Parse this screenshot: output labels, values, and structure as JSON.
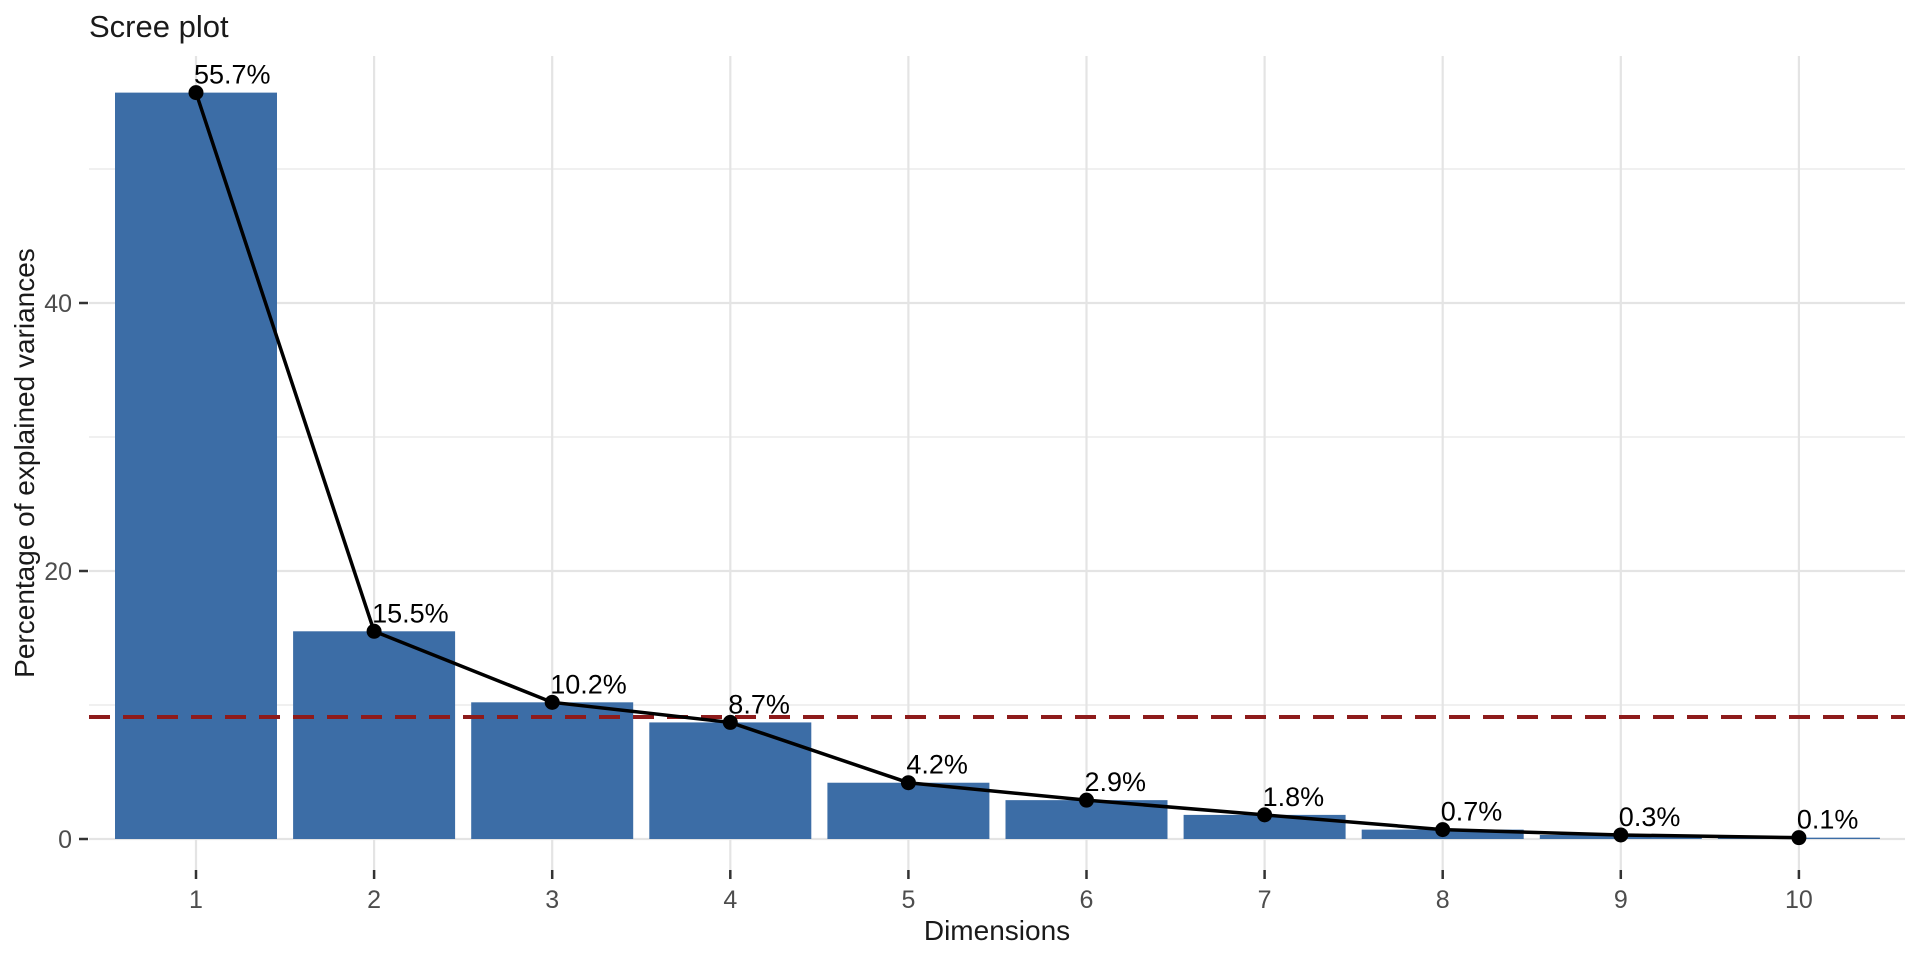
{
  "title": "Scree plot",
  "chart_data": {
    "type": "bar",
    "overlay": "line+points",
    "title": "Scree plot",
    "xlabel": "Dimensions",
    "ylabel": "Percentage of explained variances",
    "categories": [
      "1",
      "2",
      "3",
      "4",
      "5",
      "6",
      "7",
      "8",
      "9",
      "10"
    ],
    "values": [
      55.7,
      15.5,
      10.2,
      8.7,
      4.2,
      2.9,
      1.8,
      0.7,
      0.3,
      0.1
    ],
    "point_labels": [
      "55.7%",
      "15.5%",
      "10.2%",
      "8.7%",
      "4.2%",
      "2.9%",
      "1.8%",
      "0.7%",
      "0.3%",
      "0.1%"
    ],
    "ylim": [
      0,
      58.4
    ],
    "y_tick_values": [
      0,
      20,
      40
    ],
    "y_tick_labels": [
      "0",
      "20",
      "40"
    ],
    "y_minor_gridlines": [
      10,
      30,
      50
    ],
    "x_gridlines": "at-each-category",
    "reference_line": {
      "y": 9.1,
      "style": "dashed"
    },
    "grid": "on",
    "legend": "none"
  },
  "colors": {
    "bar": "#3C6DA6",
    "line": "#000000",
    "point": "#000000",
    "reference": "#8E1B1B",
    "grid_major": "#E4E4E4",
    "grid_minor": "#ECECEC",
    "tick_mark": "#333333",
    "tick_text": "#4D4D4D",
    "text": "#1A1A1A",
    "background": "#FFFFFF"
  }
}
